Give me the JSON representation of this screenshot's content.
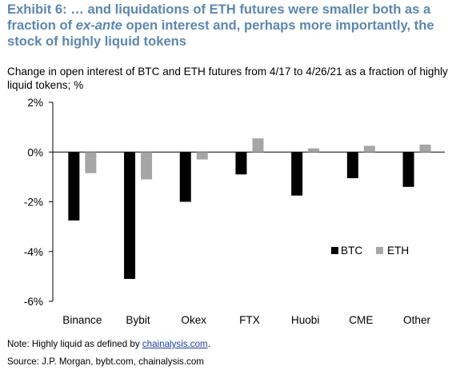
{
  "title": {
    "part1": "Exhibit 6: … and liquidations of ETH futures were smaller both as a fraction of ",
    "italic": "ex-ante",
    "part2": " open interest and, perhaps more importantly, the stock of highly liquid tokens"
  },
  "subtitle": "Change in open interest of BTC and ETH futures from 4/17 to 4/26/21 as a fraction of highly liquid tokens; %",
  "note": {
    "prefix": "Note: Highly liquid as defined by ",
    "link": "chainalysis.com",
    "suffix": "."
  },
  "source": "Source: J.P.  Morgan, bybt.com, chainalysis.com",
  "colors": {
    "btc": "#000000",
    "eth": "#a6a6a6",
    "title": "#5b87b5"
  },
  "chart_data": {
    "type": "bar",
    "categories": [
      "Binance",
      "Bybit",
      "Okex",
      "FTX",
      "Huobi",
      "CME",
      "Other"
    ],
    "series": [
      {
        "name": "BTC",
        "values": [
          -2.75,
          -5.1,
          -2.0,
          -0.9,
          -1.75,
          -1.05,
          -1.4
        ]
      },
      {
        "name": "ETH",
        "values": [
          -0.85,
          -1.1,
          -0.3,
          0.55,
          0.15,
          0.25,
          0.3
        ]
      }
    ],
    "yticks": [
      "2%",
      "0%",
      "-2%",
      "-4%",
      "-6%"
    ],
    "ylim": [
      -6,
      2
    ],
    "legend_position": "lower-right",
    "grid": false
  }
}
